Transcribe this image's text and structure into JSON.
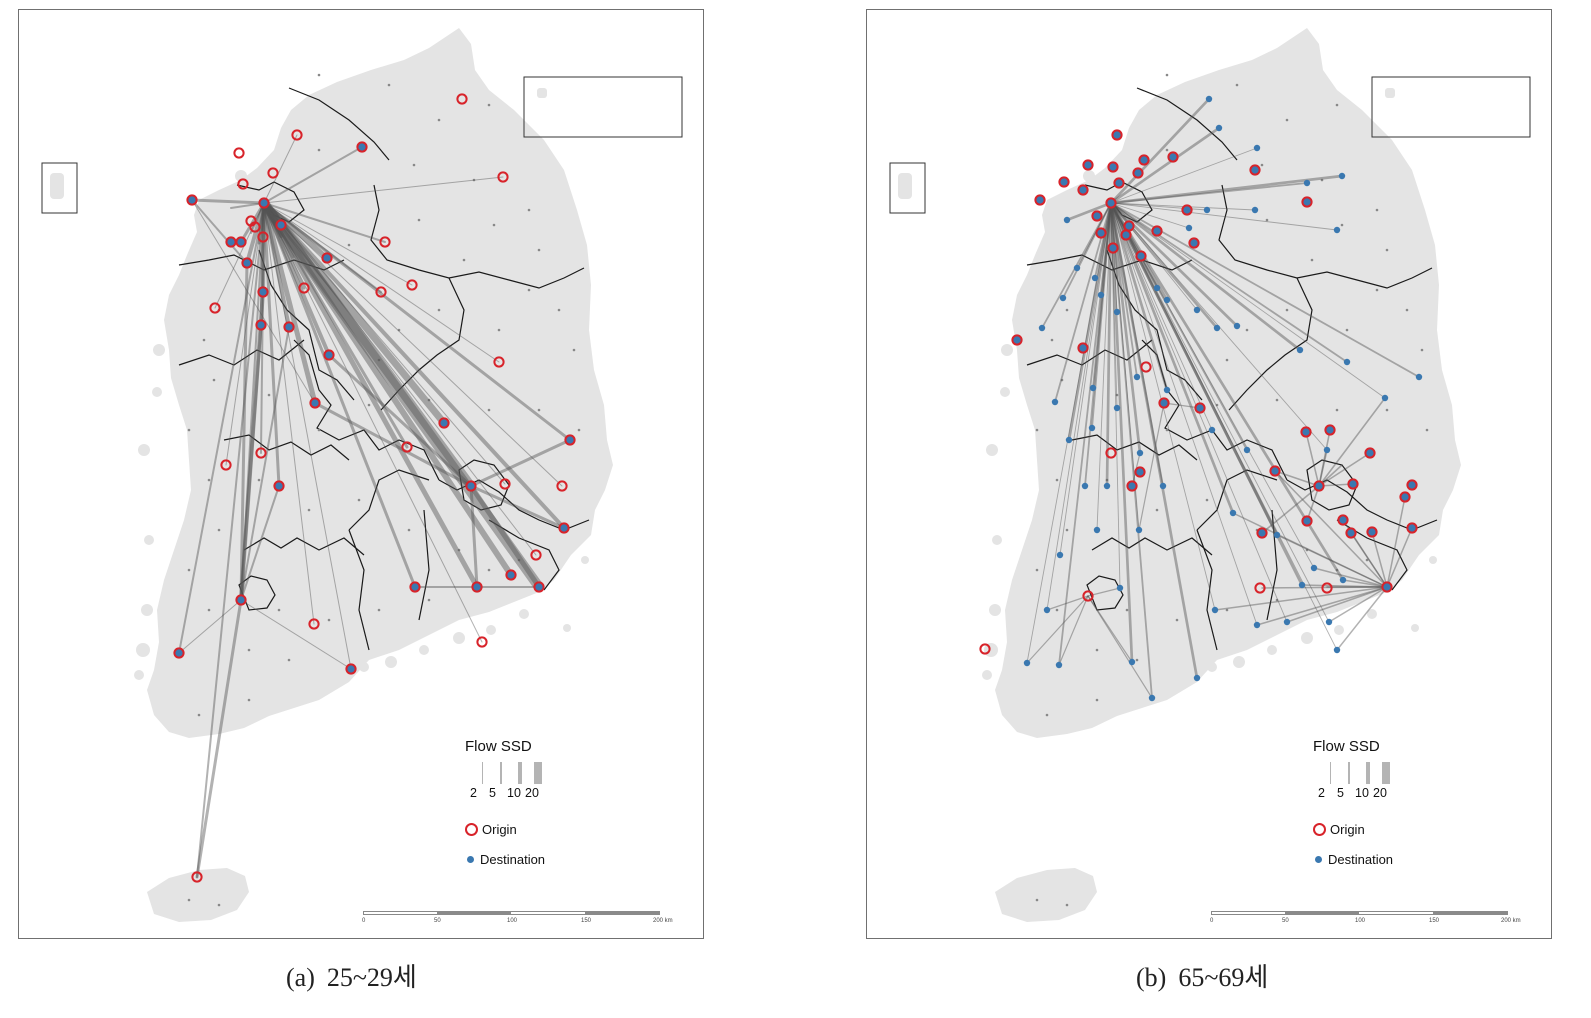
{
  "panels": [
    {
      "caption_label": "(a)",
      "caption_text": "25~29세",
      "legend": {
        "title": "Flow SSD",
        "width_labels": [
          "2",
          "5",
          "10",
          "20"
        ],
        "origin_label": "Origin",
        "destination_label": "Destination"
      },
      "scale": {
        "labels": [
          "0",
          "50",
          "100",
          "150",
          "200 km"
        ]
      }
    },
    {
      "caption_label": "(b)",
      "caption_text": "65~69세",
      "legend": {
        "title": "Flow SSD",
        "width_labels": [
          "2",
          "5",
          "10",
          "20"
        ],
        "origin_label": "Origin",
        "destination_label": "Destination"
      },
      "scale": {
        "labels": [
          "0",
          "50",
          "100",
          "150",
          "200 km"
        ]
      }
    }
  ],
  "colors": {
    "land": "#e4e4e4",
    "boundary": "#1a1a1a",
    "flow": "#555555",
    "origin": "#d8232a",
    "destination": "#3a78b0"
  }
}
